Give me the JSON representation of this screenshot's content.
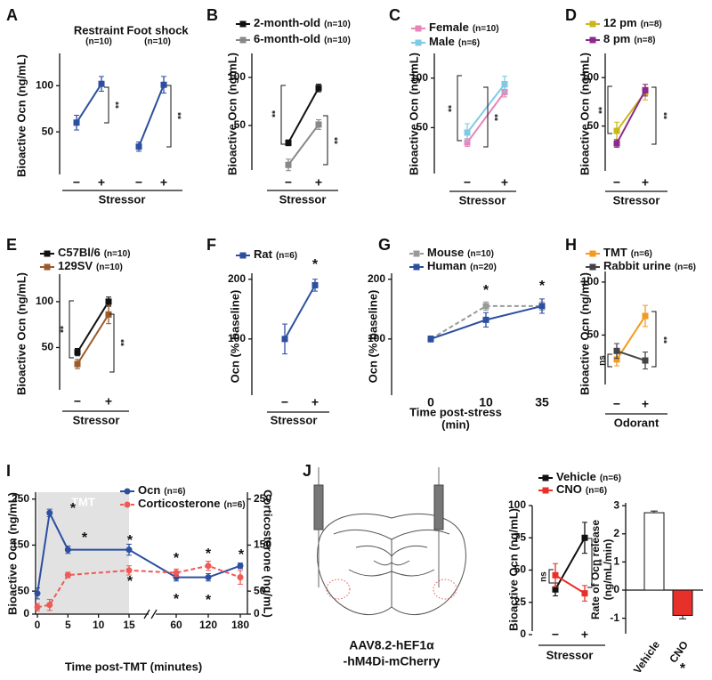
{
  "chart_data": [
    {
      "type": "line",
      "label": "A",
      "ylabel": "Bioactive Ocn (ng/mL)",
      "ylim": [
        0,
        135
      ],
      "yticks": [
        50,
        100
      ],
      "categories": [
        "−",
        "+",
        "−",
        "+"
      ],
      "xlabel": "Stressor",
      "legend": "header",
      "series": [
        {
          "name": "Restraint",
          "n": "(n=10)",
          "color": "#2d4fa0",
          "values": [
            60,
            102,
            null,
            null
          ],
          "errors": [
            8,
            8,
            null,
            null
          ]
        },
        {
          "name": "Foot shock",
          "n": "(n=10)",
          "color": "#2d4fa0",
          "values": [
            null,
            null,
            34,
            101
          ],
          "errors": [
            null,
            null,
            5,
            9
          ]
        }
      ],
      "annotations": [
        "**",
        "**"
      ]
    },
    {
      "type": "line",
      "label": "B",
      "ylabel": "Bioactive Ocn (ng/mL)",
      "ylim": [
        0,
        125
      ],
      "yticks": [
        50,
        100
      ],
      "categories": [
        "−",
        "+"
      ],
      "xlabel": "Stressor",
      "series": [
        {
          "name": "2-month-old",
          "n": "(n=10)",
          "color": "#111111",
          "values": [
            32,
            89
          ],
          "errors": [
            3,
            4
          ]
        },
        {
          "name": "6-month-old",
          "n": "(n=10)",
          "color": "#888888",
          "values": [
            9,
            51
          ],
          "errors": [
            6,
            5
          ]
        }
      ],
      "annotations": [
        "**",
        "**"
      ]
    },
    {
      "type": "line",
      "label": "C",
      "ylabel": "Bioactive Ocn (ng/mL)",
      "ylim": [
        0,
        125
      ],
      "yticks": [
        50,
        100
      ],
      "categories": [
        "−",
        "+"
      ],
      "xlabel": "Stressor",
      "series": [
        {
          "name": "Female",
          "n": "(n=10)",
          "color": "#e884b8",
          "values": [
            35,
            86
          ],
          "errors": [
            4,
            5
          ]
        },
        {
          "name": "Male",
          "n": "(n=6)",
          "color": "#7fcbe6",
          "values": [
            45,
            94
          ],
          "errors": [
            9,
            8
          ]
        }
      ],
      "annotations": [
        "**",
        "**"
      ]
    },
    {
      "type": "line",
      "label": "D",
      "ylabel": "Bioactive Ocn (ng/mL)",
      "ylim": [
        0,
        125
      ],
      "yticks": [
        50,
        100
      ],
      "categories": [
        "−",
        "+"
      ],
      "xlabel": "Stressor",
      "series": [
        {
          "name": "12 pm",
          "n": "(n=8)",
          "color": "#c9b81c",
          "values": [
            45,
            85
          ],
          "errors": [
            9,
            8
          ]
        },
        {
          "name": "8 pm",
          "n": "(n=8)",
          "color": "#8b2a8b",
          "values": [
            32,
            87
          ],
          "errors": [
            4,
            6
          ]
        }
      ],
      "annotations": [
        "**",
        "**"
      ]
    },
    {
      "type": "line",
      "label": "E",
      "ylabel": "Bioactive Ocn (ng/mL)",
      "ylim": [
        0,
        130
      ],
      "yticks": [
        50,
        100
      ],
      "categories": [
        "−",
        "+"
      ],
      "xlabel": "Stressor",
      "series": [
        {
          "name": "C57Bl/6",
          "n": "(n=10)",
          "color": "#111111",
          "values": [
            45,
            100
          ],
          "errors": [
            4,
            5
          ]
        },
        {
          "name": "129SV",
          "n": "(n=10)",
          "color": "#9a5a2a",
          "values": [
            32,
            86
          ],
          "errors": [
            5,
            10
          ]
        }
      ],
      "annotations": [
        "**",
        "**"
      ]
    },
    {
      "type": "line",
      "label": "F",
      "ylabel": "Ocn (% baseline)",
      "ylim": [
        0,
        210
      ],
      "yticks": [
        100,
        200
      ],
      "categories": [
        "−",
        "+"
      ],
      "xlabel": "Stressor",
      "series": [
        {
          "name": "Rat",
          "n": "(n=6)",
          "color": "#2d4fa0",
          "values": [
            100,
            190
          ],
          "errors": [
            25,
            10
          ]
        }
      ],
      "annotations": [
        "*"
      ]
    },
    {
      "type": "line",
      "label": "G",
      "ylabel": "Ocn (% baseline)",
      "ylim": [
        0,
        210
      ],
      "yticks": [
        100,
        200
      ],
      "categories": [
        "0",
        "10",
        "35"
      ],
      "xlabel": [
        "Time post-stress",
        "(min)"
      ],
      "series": [
        {
          "name": "Mouse",
          "n": "(n=10)",
          "color": "#999999",
          "dashed": true,
          "values": [
            100,
            155,
            155
          ],
          "errors": [
            4,
            7,
            7
          ]
        },
        {
          "name": "Human",
          "n": "(n=20)",
          "color": "#2d4fa0",
          "values": [
            100,
            132,
            155
          ],
          "errors": [
            5,
            12,
            12
          ]
        }
      ],
      "annotations": [
        "*",
        "*"
      ]
    },
    {
      "type": "line",
      "label": "H",
      "ylabel": "Bioactive Ocn (ng/mL)",
      "ylim": [
        0,
        110
      ],
      "yticks": [
        50,
        100
      ],
      "categories": [
        "−",
        "+"
      ],
      "xlabel": "Odorant",
      "series": [
        {
          "name": "TMT",
          "n": "(n=6)",
          "color": "#f39a1f",
          "values": [
            27,
            68
          ],
          "errors": [
            6,
            10
          ]
        },
        {
          "name": "Rabbit urine",
          "n": "(n=6)",
          "color": "#444444",
          "values": [
            35,
            26
          ],
          "errors": [
            7,
            8
          ]
        }
      ],
      "annotations": [
        "ns",
        "**"
      ]
    },
    {
      "type": "line",
      "label": "I",
      "ylabel": "Bioactive Ocn (ng/mL)",
      "y2label": "Corticosterone (ng/mL)",
      "xlabel": "Time post-TMT (minutes)",
      "ylim": [
        0,
        265
      ],
      "yticks": [
        0,
        50,
        150,
        250
      ],
      "y2lim": [
        0,
        265
      ],
      "y2ticks": [
        0,
        50,
        150,
        250
      ],
      "x": [
        0,
        2,
        5,
        15,
        60,
        120,
        180
      ],
      "xticks": [
        0,
        5,
        10,
        15,
        60,
        120,
        180
      ],
      "shade": {
        "label": "TMT",
        "range": [
          0,
          15
        ]
      },
      "series": [
        {
          "name": "Ocn",
          "n": "(n=6)",
          "color": "#2d4fa0",
          "values": [
            45,
            220,
            140,
            140,
            80,
            80,
            105
          ],
          "errors": [
            12,
            8,
            8,
            12,
            8,
            8,
            6
          ]
        },
        {
          "name": "Corticosterone",
          "n": "(n=6)",
          "color": "#ee5a55",
          "dashed": true,
          "axis": "y2",
          "values": [
            15,
            20,
            85,
            95,
            90,
            105,
            80
          ],
          "errors": [
            8,
            12,
            6,
            10,
            8,
            10,
            15
          ]
        }
      ],
      "annotations": [
        "*",
        "*",
        "*",
        "*",
        "*",
        "*",
        "*",
        "*",
        "*"
      ]
    },
    {
      "type": "line",
      "label": "J",
      "ylabel": "Bioactive Ocn (ng/mL)",
      "ylim": [
        0,
        100
      ],
      "yticks": [
        0,
        25,
        50,
        75,
        100
      ],
      "categories": [
        "−",
        "+"
      ],
      "xlabel": "Stressor",
      "series": [
        {
          "name": "Vehicle",
          "n": "(n=6)",
          "color": "#111111",
          "values": [
            35,
            75
          ],
          "errors": [
            5,
            12
          ]
        },
        {
          "name": "CNO",
          "n": "(n=6)",
          "color": "#e8302a",
          "values": [
            46,
            32
          ],
          "errors": [
            9,
            6
          ]
        }
      ],
      "annotations": [
        "ns",
        "**"
      ]
    },
    {
      "type": "bar",
      "ylabel": [
        "Rate of Ocn release",
        "(ng/mL/min)"
      ],
      "ylim": [
        -1.55,
        3.1
      ],
      "yticks": [
        -1,
        0,
        1,
        2,
        3
      ],
      "categories": [
        "Vehicle",
        "CNO"
      ],
      "values": [
        2.75,
        -0.9
      ],
      "errors": [
        0.06,
        0.12
      ],
      "colors": [
        "#ffffff",
        "#e8302a"
      ],
      "annotations": [
        "*"
      ]
    }
  ],
  "diagram": {
    "caption": [
      "AAV8.2-hEF1α",
      "-hM4Di-mCherry"
    ]
  }
}
